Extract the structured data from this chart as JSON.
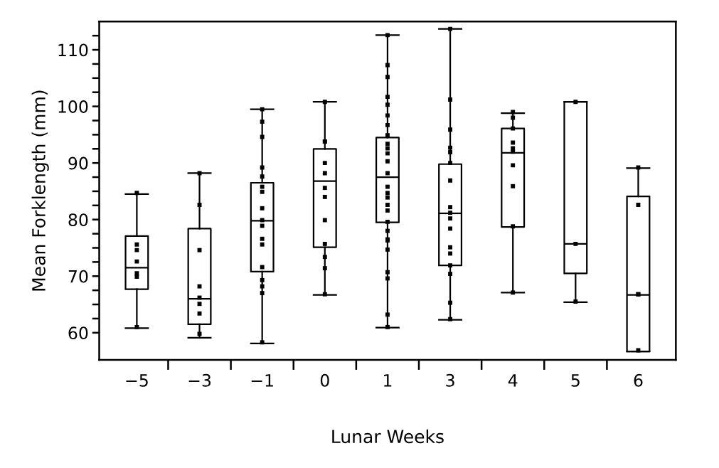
{
  "chart_data": {
    "type": "box",
    "xlabel": "Lunar Weeks",
    "ylabel": "Mean Forklength (mm)",
    "categories": [
      "−5",
      "−3",
      "−1",
      "0",
      "1",
      "3",
      "4",
      "5",
      "6"
    ],
    "boxes": [
      {
        "low": 60.8,
        "q1": 67.7,
        "median": 71.5,
        "q3": 77.1,
        "high": 84.5
      },
      {
        "low": 59.1,
        "q1": 61.5,
        "median": 66.0,
        "q3": 78.4,
        "high": 88.2
      },
      {
        "low": 58.1,
        "q1": 70.8,
        "median": 79.8,
        "q3": 86.5,
        "high": 99.5
      },
      {
        "low": 66.7,
        "q1": 75.1,
        "median": 86.8,
        "q3": 92.5,
        "high": 100.8
      },
      {
        "low": 60.9,
        "q1": 79.5,
        "median": 87.5,
        "q3": 94.5,
        "high": 112.6
      },
      {
        "low": 62.3,
        "q1": 71.9,
        "median": 81.1,
        "q3": 89.8,
        "high": 113.7
      },
      {
        "low": 67.1,
        "q1": 78.7,
        "median": 91.8,
        "q3": 96.1,
        "high": 98.8
      },
      {
        "low": 65.4,
        "q1": 70.5,
        "median": 75.7,
        "q3": 100.8,
        "high": 100.8
      },
      {
        "low": 56.7,
        "q1": 56.7,
        "median": 66.7,
        "q3": 84.1,
        "high": 89.1
      }
    ],
    "series": [
      {
        "type": "scatter",
        "color": "#000000",
        "x": [
          "−5",
          "−5",
          "−5",
          "−5",
          "−5",
          "−5",
          "−5",
          "−3",
          "−3",
          "−3",
          "−3",
          "−3",
          "−3",
          "−3",
          "−3",
          "−1",
          "−1",
          "−1",
          "−1",
          "−1",
          "−1",
          "−1",
          "−1",
          "−1",
          "−1",
          "−1",
          "−1",
          "−1",
          "−1",
          "−1",
          "−1",
          "−1",
          "0",
          "0",
          "0",
          "0",
          "0",
          "0",
          "0",
          "0",
          "0",
          "0",
          "0",
          "0",
          "1",
          "1",
          "1",
          "1",
          "1",
          "1",
          "1",
          "1",
          "1",
          "1",
          "1",
          "1",
          "1",
          "1",
          "1",
          "1",
          "1",
          "1",
          "1",
          "1",
          "1",
          "1",
          "1",
          "1",
          "1",
          "1",
          "1",
          "3",
          "3",
          "3",
          "3",
          "3",
          "3",
          "3",
          "3",
          "3",
          "3",
          "3",
          "3",
          "3",
          "3",
          "3",
          "3",
          "3",
          "4",
          "4",
          "4",
          "4",
          "4",
          "4",
          "4",
          "4",
          "4",
          "4",
          "5",
          "5",
          "5",
          "6",
          "6",
          "6",
          "6",
          "6"
        ],
        "values": [
          84.7,
          75.6,
          74.6,
          72.6,
          70.5,
          69.9,
          61.0,
          88.2,
          82.6,
          74.6,
          68.2,
          66.2,
          65.1,
          63.4,
          59.8,
          99.5,
          97.3,
          94.6,
          89.2,
          87.6,
          85.8,
          84.9,
          82.0,
          79.9,
          78.9,
          76.6,
          75.6,
          71.6,
          69.3,
          68.2,
          67.0,
          58.3,
          100.8,
          93.8,
          93.8,
          90.0,
          88.2,
          85.6,
          84.0,
          79.9,
          75.7,
          73.4,
          71.4,
          66.8,
          112.6,
          107.3,
          105.2,
          101.7,
          100.3,
          98.4,
          96.7,
          94.9,
          93.4,
          92.6,
          91.7,
          90.3,
          88.2,
          85.8,
          84.7,
          83.9,
          82.6,
          81.6,
          79.6,
          78.0,
          76.5,
          76.3,
          74.7,
          70.7,
          69.6,
          63.2,
          61.0,
          113.7,
          101.2,
          95.9,
          92.7,
          91.9,
          90.0,
          86.9,
          82.2,
          81.2,
          80.2,
          78.4,
          75.1,
          74.0,
          71.9,
          70.4,
          65.3,
          62.4,
          99.0,
          98.0,
          96.1,
          93.6,
          92.6,
          92.0,
          89.6,
          85.9,
          78.8,
          67.1,
          100.8,
          75.7,
          65.5,
          89.2,
          82.6,
          66.8,
          66.8,
          56.9
        ]
      }
    ],
    "marker": "square",
    "ylim": [
      55.2,
      115
    ],
    "yticks": [
      60,
      {
        "value": 62.5,
        "label": null
      },
      {
        "value": 65,
        "label": null
      },
      {
        "value": 67.5,
        "label": null
      },
      70,
      {
        "value": 72.5,
        "label": null
      },
      {
        "value": 75,
        "label": null
      },
      {
        "value": 77.5,
        "label": null
      },
      80,
      {
        "value": 82.5,
        "label": null
      },
      {
        "value": 85,
        "label": null
      },
      {
        "value": 87.5,
        "label": null
      },
      90,
      {
        "value": 92.5,
        "label": null
      },
      {
        "value": 95,
        "label": null
      },
      {
        "value": 97.5,
        "label": null
      },
      100,
      {
        "value": 102.5,
        "label": null
      },
      {
        "value": 105,
        "label": null
      },
      {
        "value": 107.5,
        "label": null
      },
      110,
      {
        "value": 112.5,
        "label": null
      }
    ],
    "grid": false,
    "legend": false
  }
}
